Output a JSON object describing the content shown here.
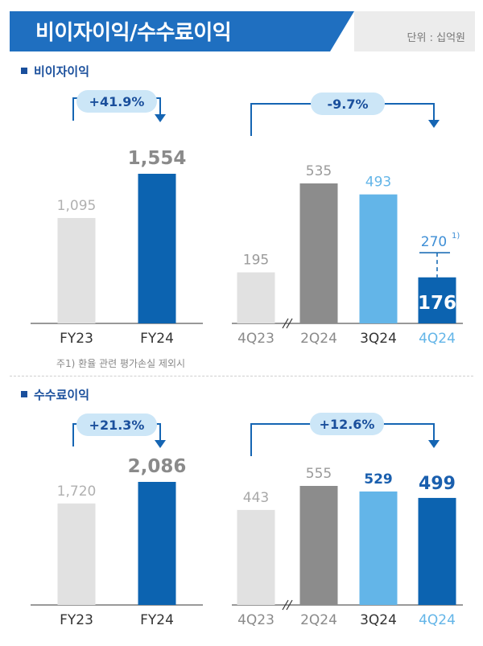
{
  "header": {
    "title": "비이자이익/수수료이익",
    "unit": "단위 : 십억원"
  },
  "footnote": "주1) 환율 관련 평가손실 제외시",
  "colors": {
    "light_gray": "#e1e1e1",
    "dark_gray": "#8c8c8c",
    "light_blue": "#63b5e8",
    "dark_blue": "#0c63b0",
    "pill": "#cce6f7",
    "arrow": "#1565b3"
  },
  "chart_data": [
    {
      "type": "bar",
      "title": "비이자이익",
      "categories": [
        "FY23",
        "FY24"
      ],
      "values": [
        1095,
        1554
      ],
      "labels": [
        "1,095",
        "1,554"
      ],
      "growth": "+41.9%"
    },
    {
      "type": "bar",
      "title": "비이자이익",
      "categories": [
        "4Q23",
        "2Q24",
        "3Q24",
        "4Q24"
      ],
      "values": [
        195,
        535,
        493,
        176
      ],
      "labels": [
        "195",
        "535",
        "493",
        "176"
      ],
      "adjusted_4q24": {
        "value": 270,
        "label": "270",
        "note": "1)"
      },
      "growth": "-9.7%"
    },
    {
      "type": "bar",
      "title": "수수료이익",
      "categories": [
        "FY23",
        "FY24"
      ],
      "values": [
        1720,
        2086
      ],
      "labels": [
        "1,720",
        "2,086"
      ],
      "growth": "+21.3%"
    },
    {
      "type": "bar",
      "title": "수수료이익",
      "categories": [
        "4Q23",
        "2Q24",
        "3Q24",
        "4Q24"
      ],
      "values": [
        443,
        555,
        529,
        499
      ],
      "labels": [
        "443",
        "555",
        "529",
        "499"
      ],
      "growth": "+12.6%"
    }
  ]
}
